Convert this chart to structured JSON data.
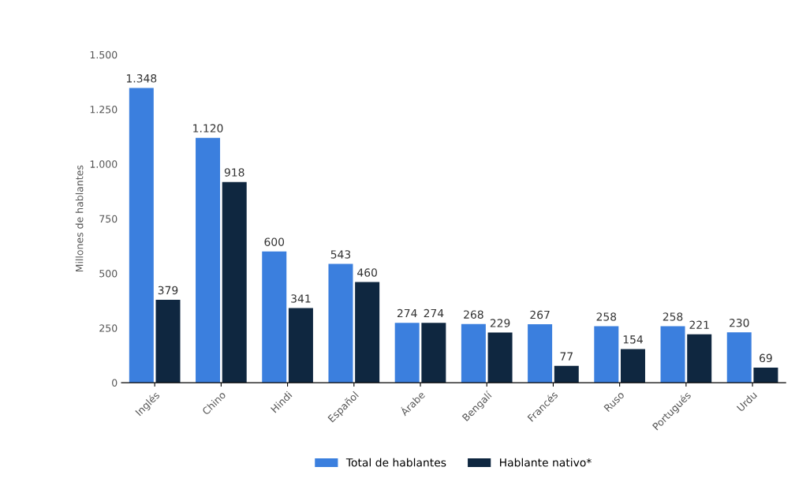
{
  "chart_data": {
    "type": "bar",
    "ylabel": "Millones de hablantes",
    "categories": [
      "Inglés",
      "Chino",
      "Hindi",
      "Español",
      "Árabe",
      "Bengalí",
      "Francés",
      "Ruso",
      "Portugués",
      "Urdu"
    ],
    "series": [
      {
        "name": "Total de hablantes",
        "color": "#3b7fde",
        "values": [
          1348,
          1120,
          600,
          543,
          274,
          268,
          267,
          258,
          258,
          230
        ],
        "value_labels": [
          "1.348",
          "1.120",
          "600",
          "543",
          "274",
          "268",
          "267",
          "258",
          "258",
          "230"
        ]
      },
      {
        "name": "Hablante nativo*",
        "color": "#0f2740",
        "values": [
          379,
          918,
          341,
          460,
          274,
          229,
          77,
          154,
          221,
          69
        ],
        "value_labels": [
          "379",
          "918",
          "341",
          "460",
          "274",
          "229",
          "77",
          "154",
          "221",
          "69"
        ]
      }
    ],
    "ylim": [
      0,
      1500
    ],
    "yticks": [
      0,
      250,
      500,
      750,
      {
        "value": 1000,
        "label": "1.000"
      },
      {
        "value": 1250,
        "label": "1.250"
      },
      {
        "value": 1500,
        "label": "1.500"
      }
    ],
    "grid": false,
    "legend": "bottom"
  }
}
